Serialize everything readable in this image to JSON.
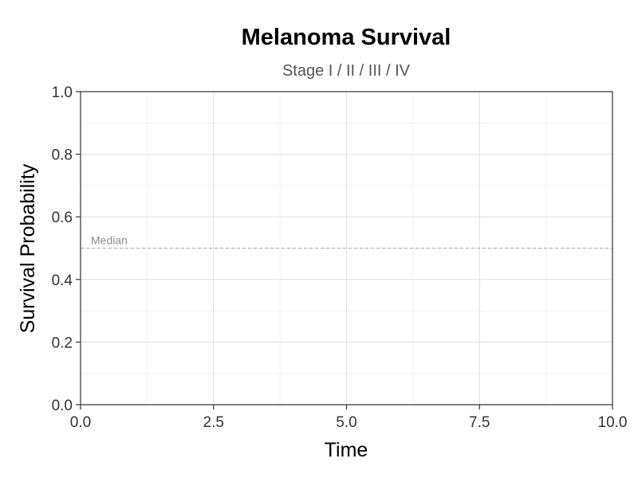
{
  "chart_data": {
    "type": "line",
    "title": "Melanoma Survival",
    "subtitle": "Stage I / II / III / IV",
    "xlabel": "Time",
    "ylabel": "Survival Probability",
    "xlim": [
      0,
      10
    ],
    "ylim": [
      0,
      1
    ],
    "x_ticks": [
      0,
      2.5,
      5,
      7.5,
      10
    ],
    "x_tick_labels": [
      "0.0",
      "2.5",
      "5.0",
      "7.5",
      "10.0"
    ],
    "y_ticks": [
      0,
      0.2,
      0.4,
      0.6,
      0.8,
      1
    ],
    "y_tick_labels": [
      "0.0",
      "0.2",
      "0.4",
      "0.6",
      "0.8",
      "1.0"
    ],
    "x_minor_ticks": [
      1.25,
      3.75,
      6.25,
      8.75
    ],
    "y_minor_ticks": [
      0.1,
      0.3,
      0.5,
      0.7,
      0.9
    ],
    "grid": true,
    "series": [],
    "reference_line": {
      "y": 0.5,
      "label": "Median",
      "style": "dashed",
      "color": "#aaaaaa"
    }
  }
}
